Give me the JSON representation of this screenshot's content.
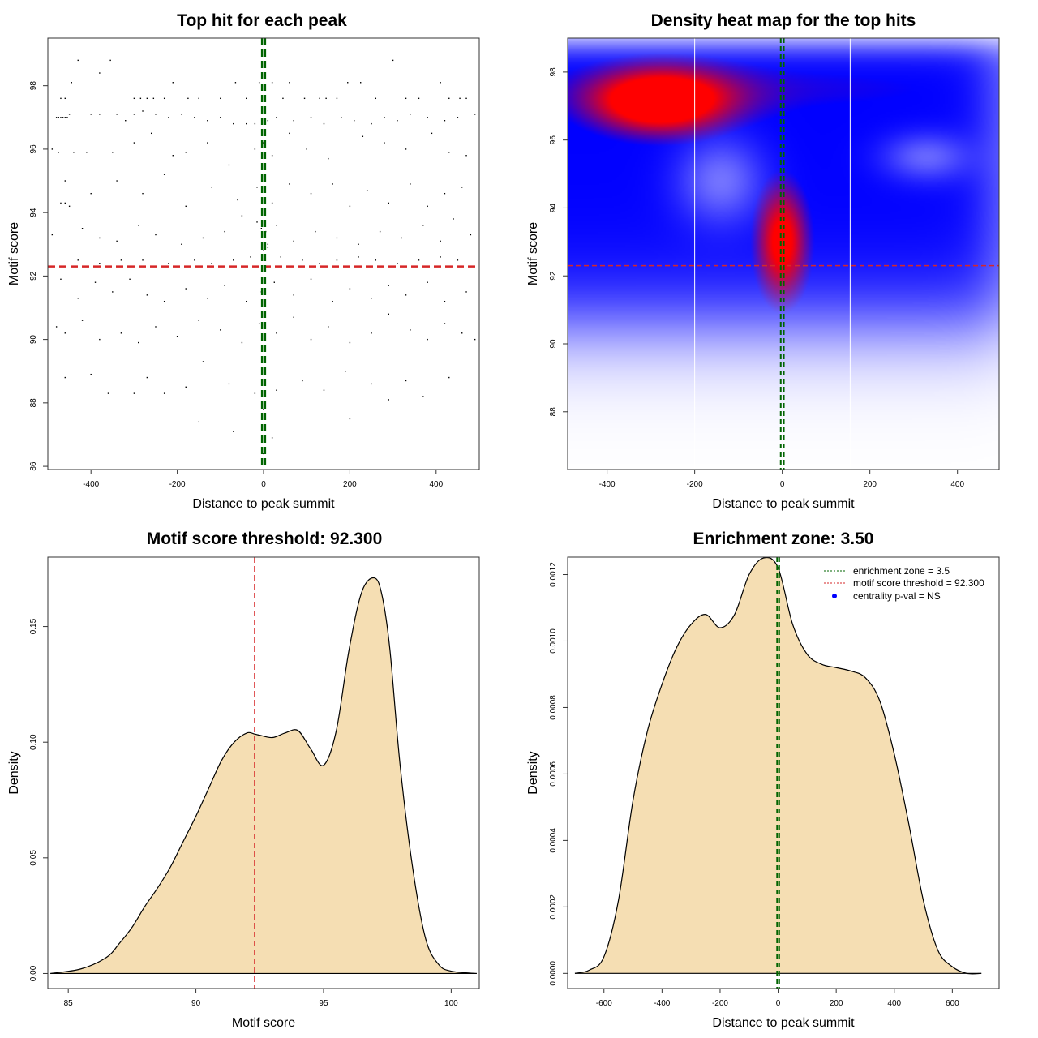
{
  "colors": {
    "density_fill": "#F5DEB3",
    "threshold_line": "#D62728",
    "zone_line": "#006400",
    "point": "#000000",
    "heat_low": "#0000FF",
    "heat_high": "#FF0000",
    "centrality_marker": "#0000FF"
  },
  "chart_data": [
    {
      "id": "scatter",
      "type": "scatter",
      "title": "Top hit for each peak",
      "xlabel": "Distance to peak summit",
      "ylabel": "Motif score",
      "xlim": [
        -500,
        500
      ],
      "ylim": [
        85.9,
        99.5
      ],
      "xticks": [
        -400,
        -200,
        0,
        200,
        400
      ],
      "yticks": [
        86,
        88,
        90,
        92,
        94,
        96,
        98
      ],
      "threshold_y": 92.3,
      "zone_x": [
        -3.5,
        3.5
      ],
      "points": [
        [
          -480,
          97.0
        ],
        [
          -475,
          97.0
        ],
        [
          -470,
          97.0
        ],
        [
          -465,
          97.0
        ],
        [
          -460,
          97.0
        ],
        [
          -455,
          97.0
        ],
        [
          -450,
          97.1
        ],
        [
          -470,
          97.6
        ],
        [
          -460,
          97.6
        ],
        [
          -445,
          98.1
        ],
        [
          -430,
          98.8
        ],
        [
          -380,
          98.4
        ],
        [
          -355,
          98.8
        ],
        [
          -300,
          97.6
        ],
        [
          -285,
          97.6
        ],
        [
          -270,
          97.6
        ],
        [
          -255,
          97.6
        ],
        [
          -230,
          97.6
        ],
        [
          -210,
          98.1
        ],
        [
          -175,
          97.6
        ],
        [
          -150,
          97.6
        ],
        [
          -100,
          97.6
        ],
        [
          -65,
          98.1
        ],
        [
          -40,
          97.6
        ],
        [
          -10,
          98.1
        ],
        [
          20,
          98.1
        ],
        [
          45,
          97.6
        ],
        [
          60,
          98.1
        ],
        [
          95,
          97.6
        ],
        [
          130,
          97.6
        ],
        [
          145,
          97.6
        ],
        [
          170,
          97.6
        ],
        [
          195,
          98.1
        ],
        [
          225,
          98.1
        ],
        [
          260,
          97.6
        ],
        [
          300,
          98.8
        ],
        [
          330,
          97.6
        ],
        [
          360,
          97.6
        ],
        [
          410,
          98.1
        ],
        [
          430,
          97.6
        ],
        [
          455,
          97.6
        ],
        [
          470,
          97.6
        ],
        [
          490,
          97.1
        ],
        [
          -400,
          97.1
        ],
        [
          -380,
          97.1
        ],
        [
          -340,
          97.1
        ],
        [
          -320,
          96.9
        ],
        [
          -300,
          97.1
        ],
        [
          -280,
          97.2
        ],
        [
          -250,
          97.1
        ],
        [
          -220,
          97.0
        ],
        [
          -190,
          97.1
        ],
        [
          -160,
          97.0
        ],
        [
          -130,
          96.9
        ],
        [
          -100,
          97.0
        ],
        [
          -70,
          96.8
        ],
        [
          -40,
          96.8
        ],
        [
          -20,
          96.8
        ],
        [
          10,
          96.9
        ],
        [
          30,
          97.0
        ],
        [
          70,
          96.9
        ],
        [
          110,
          97.0
        ],
        [
          140,
          96.8
        ],
        [
          180,
          97.0
        ],
        [
          210,
          96.9
        ],
        [
          250,
          96.8
        ],
        [
          280,
          97.0
        ],
        [
          310,
          96.9
        ],
        [
          340,
          97.1
        ],
        [
          380,
          97.0
        ],
        [
          420,
          96.9
        ],
        [
          450,
          97.0
        ],
        [
          -490,
          96.0
        ],
        [
          -475,
          95.9
        ],
        [
          -440,
          95.9
        ],
        [
          -410,
          95.9
        ],
        [
          -350,
          95.9
        ],
        [
          -300,
          96.2
        ],
        [
          -260,
          96.5
        ],
        [
          -210,
          95.8
        ],
        [
          -180,
          95.9
        ],
        [
          -130,
          96.2
        ],
        [
          -80,
          95.5
        ],
        [
          -20,
          96.0
        ],
        [
          0,
          96.2
        ],
        [
          20,
          95.8
        ],
        [
          60,
          96.5
        ],
        [
          100,
          96.0
        ],
        [
          150,
          95.7
        ],
        [
          230,
          96.4
        ],
        [
          280,
          96.2
        ],
        [
          330,
          96.0
        ],
        [
          390,
          96.5
        ],
        [
          430,
          95.9
        ],
        [
          470,
          95.8
        ],
        [
          -460,
          95.0
        ],
        [
          -400,
          94.6
        ],
        [
          -340,
          95.0
        ],
        [
          -280,
          94.6
        ],
        [
          -230,
          95.2
        ],
        [
          -180,
          94.2
        ],
        [
          -120,
          94.8
        ],
        [
          -60,
          94.4
        ],
        [
          -15,
          94.8
        ],
        [
          20,
          94.3
        ],
        [
          60,
          94.9
        ],
        [
          110,
          94.6
        ],
        [
          160,
          94.9
        ],
        [
          200,
          94.2
        ],
        [
          240,
          94.7
        ],
        [
          290,
          94.3
        ],
        [
          340,
          94.9
        ],
        [
          380,
          94.2
        ],
        [
          420,
          94.6
        ],
        [
          460,
          94.8
        ],
        [
          -490,
          93.3
        ],
        [
          -470,
          94.3
        ],
        [
          -460,
          94.3
        ],
        [
          -450,
          94.2
        ],
        [
          -420,
          93.5
        ],
        [
          -380,
          93.2
        ],
        [
          -340,
          93.1
        ],
        [
          -290,
          93.6
        ],
        [
          -250,
          93.3
        ],
        [
          -190,
          93.0
        ],
        [
          -140,
          93.2
        ],
        [
          -90,
          93.4
        ],
        [
          -50,
          93.9
        ],
        [
          -15,
          93.7
        ],
        [
          -5,
          93.5
        ],
        [
          5,
          93.4
        ],
        [
          10,
          93.0
        ],
        [
          30,
          93.6
        ],
        [
          70,
          93.1
        ],
        [
          120,
          93.4
        ],
        [
          170,
          93.2
        ],
        [
          220,
          93.0
        ],
        [
          270,
          93.4
        ],
        [
          320,
          93.2
        ],
        [
          370,
          93.6
        ],
        [
          410,
          93.1
        ],
        [
          440,
          93.8
        ],
        [
          480,
          93.3
        ],
        [
          -430,
          92.5
        ],
        [
          -380,
          92.4
        ],
        [
          -330,
          92.5
        ],
        [
          -280,
          92.5
        ],
        [
          -220,
          92.4
        ],
        [
          -160,
          92.5
        ],
        [
          -120,
          92.4
        ],
        [
          -70,
          92.5
        ],
        [
          -30,
          92.6
        ],
        [
          0,
          92.8
        ],
        [
          10,
          92.9
        ],
        [
          40,
          92.6
        ],
        [
          90,
          92.5
        ],
        [
          130,
          92.4
        ],
        [
          170,
          92.5
        ],
        [
          220,
          92.6
        ],
        [
          260,
          92.5
        ],
        [
          310,
          92.4
        ],
        [
          360,
          92.5
        ],
        [
          410,
          92.6
        ],
        [
          450,
          92.5
        ],
        [
          -470,
          91.9
        ],
        [
          -430,
          91.3
        ],
        [
          -390,
          91.8
        ],
        [
          -350,
          91.5
        ],
        [
          -310,
          91.9
        ],
        [
          -270,
          91.4
        ],
        [
          -230,
          91.2
        ],
        [
          -180,
          91.6
        ],
        [
          -130,
          91.3
        ],
        [
          -90,
          91.7
        ],
        [
          -40,
          91.2
        ],
        [
          -5,
          91.5
        ],
        [
          25,
          91.8
        ],
        [
          70,
          91.4
        ],
        [
          110,
          91.9
        ],
        [
          160,
          91.2
        ],
        [
          200,
          91.6
        ],
        [
          250,
          91.3
        ],
        [
          290,
          91.7
        ],
        [
          330,
          91.4
        ],
        [
          380,
          91.8
        ],
        [
          420,
          91.2
        ],
        [
          470,
          91.5
        ],
        [
          -480,
          90.4
        ],
        [
          -460,
          90.2
        ],
        [
          -420,
          90.6
        ],
        [
          -380,
          90.0
        ],
        [
          -330,
          90.2
        ],
        [
          -290,
          89.9
        ],
        [
          -250,
          90.4
        ],
        [
          -200,
          90.1
        ],
        [
          -150,
          90.6
        ],
        [
          -100,
          90.3
        ],
        [
          -50,
          89.9
        ],
        [
          -10,
          90.5
        ],
        [
          30,
          90.2
        ],
        [
          70,
          90.7
        ],
        [
          110,
          90.0
        ],
        [
          150,
          90.4
        ],
        [
          200,
          89.9
        ],
        [
          250,
          90.2
        ],
        [
          290,
          90.8
        ],
        [
          340,
          90.3
        ],
        [
          380,
          90.0
        ],
        [
          420,
          90.5
        ],
        [
          460,
          90.2
        ],
        [
          490,
          90.0
        ],
        [
          -460,
          88.8
        ],
        [
          -400,
          88.9
        ],
        [
          -360,
          88.3
        ],
        [
          -300,
          88.3
        ],
        [
          -270,
          88.8
        ],
        [
          -230,
          88.3
        ],
        [
          -180,
          88.5
        ],
        [
          -140,
          89.3
        ],
        [
          -80,
          88.6
        ],
        [
          -20,
          88.3
        ],
        [
          0,
          87.8
        ],
        [
          30,
          88.4
        ],
        [
          90,
          88.7
        ],
        [
          140,
          88.4
        ],
        [
          190,
          89.0
        ],
        [
          250,
          88.6
        ],
        [
          290,
          88.1
        ],
        [
          330,
          88.7
        ],
        [
          370,
          88.2
        ],
        [
          430,
          88.8
        ],
        [
          -150,
          87.4
        ],
        [
          -70,
          87.1
        ],
        [
          0,
          86.4
        ],
        [
          20,
          86.9
        ],
        [
          200,
          87.5
        ]
      ]
    },
    {
      "id": "heatmap",
      "type": "heatmap",
      "title": "Density heat map for the top hits",
      "xlabel": "Distance to peak summit",
      "ylabel": "Motif score",
      "xlim": [
        -490,
        495
      ],
      "ylim": [
        86.3,
        99.0
      ],
      "xticks": [
        -400,
        -200,
        0,
        200,
        400
      ],
      "yticks": [
        88,
        90,
        92,
        94,
        96,
        98
      ],
      "threshold_y": 92.3,
      "zone_x": [
        -3.5,
        3.5
      ],
      "white_lines_x": [
        -200,
        155
      ],
      "peaks": [
        {
          "x": -280,
          "y": 97.1,
          "sx": 120,
          "sy": 0.75,
          "w": 1.0
        },
        {
          "x": 0,
          "y": 93.0,
          "sx": 45,
          "sy": 1.3,
          "w": 0.95
        },
        {
          "x": 0,
          "y": 97.5,
          "sx": 500,
          "sy": 0.75,
          "w": 0.3
        }
      ]
    },
    {
      "id": "score-density",
      "type": "area",
      "title": "Motif score threshold: 92.300",
      "xlabel": "Motif score",
      "ylabel": "Density",
      "xlim": [
        84.2,
        101.1
      ],
      "ylim": [
        -0.0065,
        0.18
      ],
      "xticks": [
        85,
        90,
        95,
        100
      ],
      "yticks": [
        0.0,
        0.05,
        0.1,
        0.15
      ],
      "ytick_labels": [
        "0.00",
        "0.05",
        "0.10",
        "0.15"
      ],
      "threshold_x": 92.3,
      "x": [
        84.3,
        85.5,
        86.5,
        87.0,
        87.5,
        88.0,
        88.5,
        89.0,
        89.5,
        90.0,
        90.5,
        91.0,
        91.5,
        92.0,
        92.3,
        92.5,
        93.0,
        93.5,
        94.0,
        94.5,
        95.0,
        95.5,
        96.0,
        96.5,
        97.0,
        97.3,
        97.6,
        98.0,
        98.5,
        99.0,
        99.5,
        100.0,
        101.0
      ],
      "y": [
        0.0,
        0.002,
        0.007,
        0.013,
        0.02,
        0.029,
        0.037,
        0.046,
        0.057,
        0.068,
        0.08,
        0.092,
        0.1,
        0.104,
        0.1035,
        0.103,
        0.102,
        0.104,
        0.105,
        0.097,
        0.09,
        0.105,
        0.14,
        0.165,
        0.171,
        0.163,
        0.14,
        0.09,
        0.045,
        0.015,
        0.004,
        0.001,
        0.0
      ]
    },
    {
      "id": "distance-density",
      "type": "area",
      "title": "Enrichment zone: 3.50",
      "xlabel": "Distance to peak summit",
      "ylabel": "Density",
      "xlim": [
        -725,
        761
      ],
      "ylim": [
        -4.56e-05,
        0.0012525
      ],
      "xticks": [
        -600,
        -400,
        -200,
        0,
        200,
        400,
        600
      ],
      "yticks": [
        0.0,
        0.0002,
        0.0004,
        0.0006,
        0.0008,
        0.001,
        0.0012
      ],
      "ytick_labels": [
        "0.0000",
        "0.0002",
        "0.0004",
        "0.0006",
        "0.0008",
        "0.0010",
        "0.0012"
      ],
      "zone_x": [
        -3.5,
        3.5
      ],
      "x": [
        -700,
        -650,
        -600,
        -550,
        -500,
        -450,
        -400,
        -350,
        -300,
        -250,
        -200,
        -150,
        -100,
        -50,
        0,
        50,
        100,
        150,
        200,
        250,
        300,
        350,
        400,
        450,
        500,
        550,
        600,
        650,
        700
      ],
      "y": [
        0.0,
        1e-05,
        5e-05,
        0.00022,
        0.00052,
        0.00073,
        0.00087,
        0.00098,
        0.00105,
        0.00108,
        0.00104,
        0.00108,
        0.0012,
        0.00125,
        0.00122,
        0.00105,
        0.00096,
        0.00093,
        0.00092,
        0.00091,
        0.00089,
        0.00082,
        0.00066,
        0.00045,
        0.00022,
        7e-05,
        2e-05,
        0.0,
        0.0
      ],
      "legend": [
        {
          "label": "enrichment zone = 3.5",
          "style": "dotted",
          "color": "#006400"
        },
        {
          "label": "motif score threshold = 92.300",
          "style": "dotted",
          "color": "#D62728"
        },
        {
          "label": "centrality p-val = NS",
          "style": "point",
          "color": "#0000FF"
        }
      ]
    }
  ]
}
